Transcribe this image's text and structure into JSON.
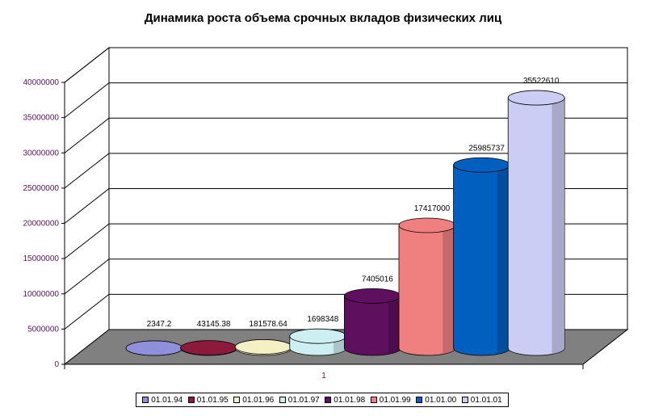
{
  "chart_data": {
    "type": "bar",
    "title": "Динамика роста объема срочных вкладов физических лиц",
    "categories": [
      "1"
    ],
    "series": [
      {
        "name": "01.01.94",
        "value": 2347.2,
        "label": "2347.2",
        "color": "#8f8fdc"
      },
      {
        "name": "01.01.95",
        "value": 43145.38,
        "label": "43145.38",
        "color": "#8b1a3c"
      },
      {
        "name": "01.01.96",
        "value": 181578.64,
        "label": "181578.64",
        "color": "#f4f0c4"
      },
      {
        "name": "01.01.97",
        "value": 1698348,
        "label": "1698348",
        "color": "#cdeff2"
      },
      {
        "name": "01.01.98",
        "value": 7405016,
        "label": "7405016",
        "color": "#5e0f5e"
      },
      {
        "name": "01.01.99",
        "value": 17417000,
        "label": "17417000",
        "color": "#f08080"
      },
      {
        "name": "01.01.00",
        "value": 25985737,
        "label": "25985737",
        "color": "#005fbf"
      },
      {
        "name": "01.01.01",
        "value": 35522610,
        "label": "35522610",
        "color": "#cccdf5"
      }
    ],
    "yticks": [
      "0",
      "5000000",
      "10000000",
      "15000000",
      "20000000",
      "25000000",
      "30000000",
      "35000000",
      "40000000"
    ],
    "ylim": [
      0,
      40000000
    ],
    "grid": true,
    "legend_position": "bottom",
    "floor_color": "#808080"
  }
}
